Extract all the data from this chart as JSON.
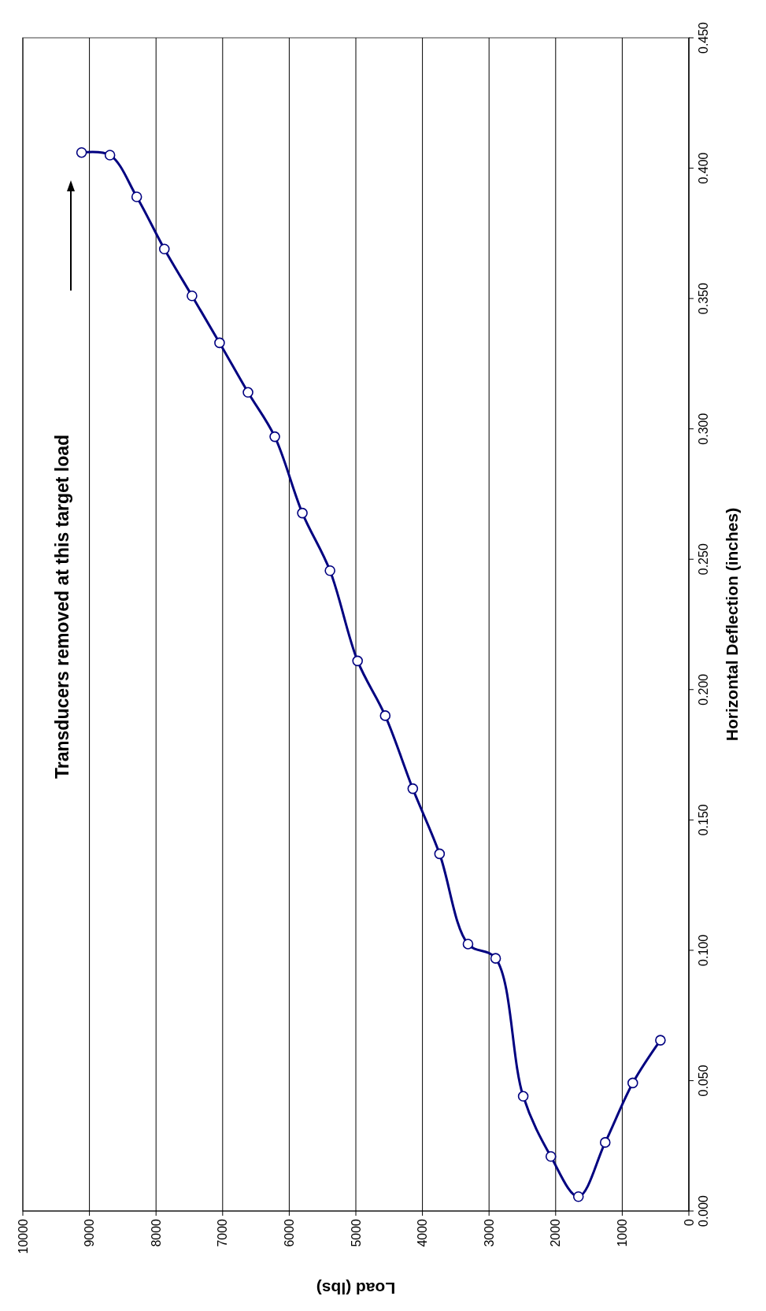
{
  "chart_data": {
    "type": "line",
    "xlabel": "Load (lbs)",
    "y2label": "Horizontal Deflection (inches)",
    "x": [
      427,
      842,
      1256,
      1658,
      2072,
      2487,
      2901,
      3316,
      3743,
      4145,
      4559,
      4974,
      5388,
      5803,
      6217,
      6619,
      7046,
      7460,
      7875,
      8290,
      8692,
      9118
    ],
    "series": [
      {
        "color": "#000080",
        "axis": "y2",
        "values": [
          0.0655,
          0.0491,
          0.0263,
          0.0055,
          0.0209,
          0.044,
          0.0969,
          0.1024,
          0.137,
          0.162,
          0.19,
          0.211,
          0.2456,
          0.2677,
          0.297,
          0.314,
          0.333,
          0.351,
          0.369,
          0.389,
          0.405,
          0.406
        ]
      }
    ],
    "xlim": [
      10000,
      0
    ],
    "y2lim": [
      0,
      0.45
    ],
    "xticks": [
      0,
      1000,
      2000,
      3000,
      4000,
      5000,
      6000,
      7000,
      8000,
      9000,
      10000
    ],
    "y2ticks": [
      {
        "value": 0,
        "label": "0.000"
      },
      {
        "value": 0.05,
        "label": "0.050"
      },
      {
        "value": 0.1,
        "label": "0.100"
      },
      {
        "value": 0.15,
        "label": "0.150"
      },
      {
        "value": 0.2,
        "label": "0.200"
      },
      {
        "value": 0.25,
        "label": "0.250"
      },
      {
        "value": 0.3,
        "label": "0.300"
      },
      {
        "value": 0.35,
        "label": "0.350"
      },
      {
        "value": 0.4,
        "label": "0.400"
      },
      {
        "value": 0.45,
        "label": "0.450"
      }
    ],
    "grid": "x",
    "marker": "circle",
    "line_style": "solid",
    "annotations": [
      "Transducers removed at this target load"
    ]
  }
}
